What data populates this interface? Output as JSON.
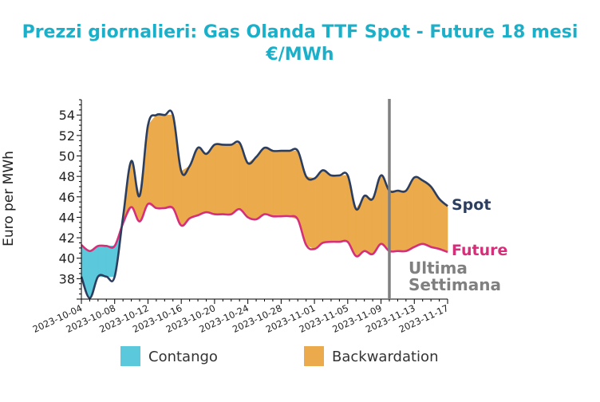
{
  "chart_data": {
    "type": "area",
    "title_line1": "Prezzi giornalieri: Gas Olanda TTF Spot - Future 18 mesi",
    "title_line2": "€/MWh",
    "ylabel": "Euro per MWh",
    "xlabel": "",
    "ylim": [
      36.0,
      55.5
    ],
    "y_ticks": [
      38,
      40,
      42,
      44,
      46,
      48,
      50,
      52,
      54
    ],
    "x_tick_labels": [
      "2023-10-04",
      "2023-10-08",
      "2023-10-12",
      "2023-10-16",
      "2023-10-20",
      "2023-10-24",
      "2023-10-28",
      "2023-11-01",
      "2023-11-05",
      "2023-11-09",
      "2023-11-13",
      "2023-11-17"
    ],
    "x_start": "2023-10-04",
    "x": [
      "2023-10-04",
      "2023-10-05",
      "2023-10-06",
      "2023-10-07",
      "2023-10-08",
      "2023-10-09",
      "2023-10-10",
      "2023-10-11",
      "2023-10-12",
      "2023-10-13",
      "2023-10-14",
      "2023-10-15",
      "2023-10-16",
      "2023-10-17",
      "2023-10-18",
      "2023-10-19",
      "2023-10-20",
      "2023-10-21",
      "2023-10-22",
      "2023-10-23",
      "2023-10-24",
      "2023-10-25",
      "2023-10-26",
      "2023-10-27",
      "2023-10-28",
      "2023-10-29",
      "2023-10-30",
      "2023-10-31",
      "2023-11-01",
      "2023-11-02",
      "2023-11-03",
      "2023-11-04",
      "2023-11-05",
      "2023-11-06",
      "2023-11-07",
      "2023-11-08",
      "2023-11-09",
      "2023-11-10",
      "2023-11-11",
      "2023-11-12",
      "2023-11-13",
      "2023-11-14",
      "2023-11-15",
      "2023-11-16",
      "2023-11-17"
    ],
    "series": [
      {
        "name": "Spot",
        "color": "#2c3e5f",
        "values": [
          38.2,
          36.1,
          38.2,
          38.2,
          38.2,
          44.0,
          49.5,
          46.1,
          53.0,
          54.0,
          54.0,
          54.0,
          48.5,
          49.0,
          50.8,
          50.2,
          51.1,
          51.1,
          51.1,
          51.3,
          49.3,
          49.9,
          50.8,
          50.5,
          50.5,
          50.5,
          50.5,
          48.0,
          47.8,
          48.6,
          48.1,
          48.1,
          48.1,
          44.8,
          46.1,
          45.8,
          48.1,
          46.6,
          46.6,
          46.6,
          47.9,
          47.6,
          47.0,
          45.8,
          45.1
        ]
      },
      {
        "name": "Future",
        "color": "#d62f7a",
        "values": [
          41.3,
          40.7,
          41.2,
          41.2,
          41.2,
          43.4,
          45.0,
          43.6,
          45.3,
          44.9,
          44.9,
          44.9,
          43.2,
          43.9,
          44.2,
          44.5,
          44.3,
          44.3,
          44.3,
          44.8,
          44.0,
          43.8,
          44.3,
          44.1,
          44.1,
          44.1,
          43.8,
          41.3,
          40.9,
          41.5,
          41.6,
          41.6,
          41.6,
          40.2,
          40.7,
          40.4,
          41.4,
          40.7,
          40.7,
          40.7,
          41.1,
          41.4,
          41.1,
          40.9,
          40.6
        ]
      }
    ],
    "fill_legend": [
      {
        "label": "Contango",
        "color": "#5bc8db"
      },
      {
        "label": "Backwardation",
        "color": "#ebaa4b"
      }
    ],
    "marker": {
      "date": "2023-11-10",
      "color": "#808080",
      "label_line1": "Ultima",
      "label_line2": "Settimana"
    },
    "grid": false,
    "legend_position": "bottom"
  }
}
